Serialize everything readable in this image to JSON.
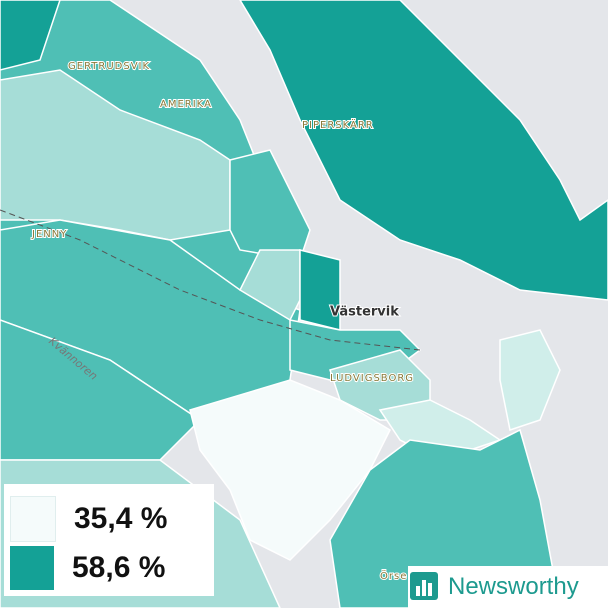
{
  "places": [
    {
      "label": "GERTRUDSVIK"
    },
    {
      "label": "AMERIKA"
    },
    {
      "label": "PIPERSKÄRR"
    },
    {
      "label": "JENNY"
    },
    {
      "label": "Västervik"
    },
    {
      "label": "LUDVIGSBORG"
    },
    {
      "label": "Kvännoren"
    },
    {
      "label": "Örse"
    }
  ],
  "legend": {
    "items": [
      {
        "label": "35,4 %",
        "color": "#f5fbfb"
      },
      {
        "label": "58,6 %",
        "color": "#14a196"
      }
    ]
  },
  "brand": {
    "label": "Newsworthy"
  }
}
